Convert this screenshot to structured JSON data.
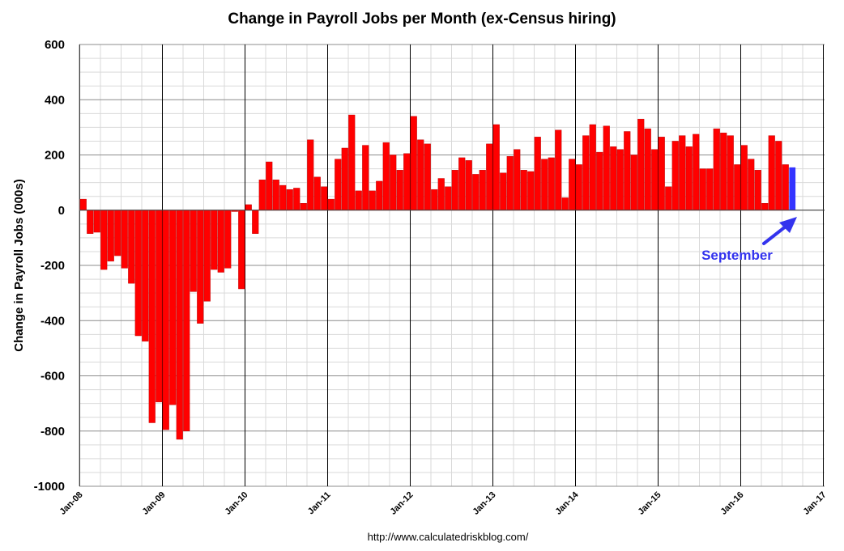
{
  "chart_data": {
    "type": "bar",
    "title": "Change in Payroll Jobs per Month (ex-Census hiring)",
    "ylabel": "Change in Payroll Jobs (000s)",
    "xlabel": "",
    "ylim": [
      -1000,
      600
    ],
    "yticks": [
      "600",
      "400",
      "200",
      "0",
      "-200",
      "-400",
      "-600",
      "-800",
      "-1000"
    ],
    "ytick_values": [
      600,
      400,
      200,
      0,
      -200,
      -400,
      -600,
      -800,
      -1000
    ],
    "xticks": [
      "Jan-08",
      "Jan-09",
      "Jan-10",
      "Jan-11",
      "Jan-12",
      "Jan-13",
      "Jan-14",
      "Jan-15",
      "Jan-16",
      "Jan-17"
    ],
    "start_label": "Jan-08",
    "grid": true,
    "series": [
      {
        "values": [
          40,
          -85,
          -80,
          -215,
          -185,
          -165,
          -210,
          -265,
          -455,
          -475,
          -770,
          -695,
          -795,
          -705,
          -830,
          -800,
          -295,
          -410,
          -330,
          -215,
          -225,
          -210,
          -5,
          -285,
          20,
          -85,
          110,
          175,
          110,
          90,
          75,
          80,
          25,
          255,
          120,
          85,
          40,
          185,
          225,
          345,
          70,
          235,
          70,
          105,
          245,
          200,
          145,
          205,
          340,
          255,
          240,
          75,
          115,
          85,
          145,
          190,
          180,
          130,
          145,
          240,
          310,
          135,
          195,
          220,
          145,
          140,
          265,
          185,
          190,
          290,
          45,
          185,
          165,
          270,
          310,
          210,
          305,
          230,
          220,
          285,
          200,
          330,
          295,
          220,
          265,
          85,
          250,
          270,
          230,
          275,
          150,
          150,
          295,
          280,
          270,
          165,
          235,
          185,
          145,
          25,
          270,
          250,
          165,
          155
        ],
        "colors": {
          "default": "#ff0000",
          "last": "#3333ff"
        }
      }
    ],
    "annotation": {
      "text": "September",
      "color": "#3333ee"
    }
  },
  "source": "http://www.calculatedriskblog.com/"
}
